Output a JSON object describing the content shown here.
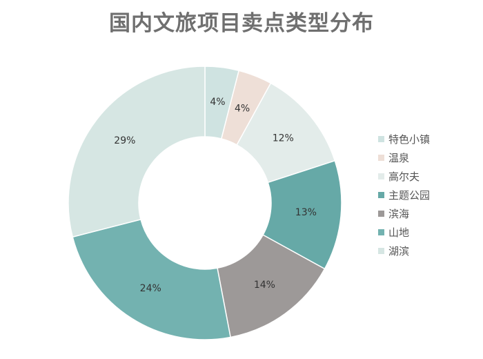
{
  "chart_data": {
    "type": "pie",
    "title": "国内文旅项目卖点类型分布",
    "categories": [
      "特色小镇",
      "温泉",
      "高尔夫",
      "主题公园",
      "滨海",
      "山地",
      "湖滨"
    ],
    "values": [
      4,
      4,
      12,
      13,
      14,
      24,
      29
    ],
    "value_labels": [
      "4%",
      "4%",
      "12%",
      "13%",
      "14%",
      "24%",
      "29%"
    ],
    "colors": [
      "#cfe3e1",
      "#eedfd7",
      "#e3ecea",
      "#66a9a7",
      "#9d9998",
      "#73b2b0",
      "#d6e6e3"
    ],
    "legend_position": "right"
  }
}
